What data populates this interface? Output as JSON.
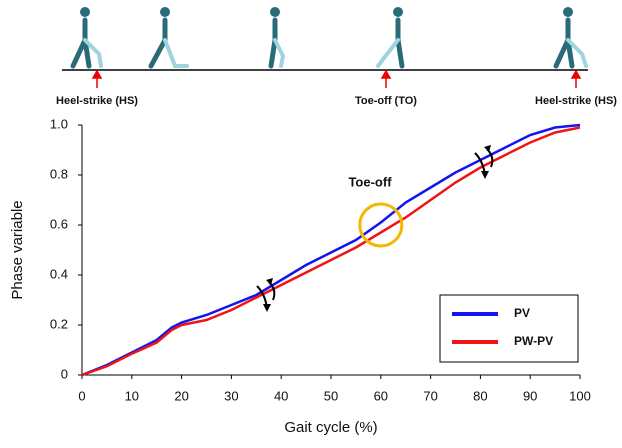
{
  "chart_data": {
    "type": "line",
    "x_label": "Gait cycle (%)",
    "y_label": "Phase variable",
    "annotation": "Toe-off",
    "gait_events": [
      "Heel-strike (HS)",
      "Toe-off (TO)",
      "Heel-strike (HS)"
    ],
    "x": [
      0,
      5,
      10,
      15,
      18,
      20,
      25,
      30,
      35,
      40,
      45,
      50,
      55,
      60,
      65,
      70,
      75,
      80,
      85,
      90,
      95,
      100
    ],
    "series": [
      {
        "name": "PV",
        "color": "#1414f0",
        "values": [
          0,
          0.04,
          0.09,
          0.14,
          0.19,
          0.21,
          0.24,
          0.28,
          0.32,
          0.38,
          0.44,
          0.49,
          0.54,
          0.61,
          0.69,
          0.75,
          0.81,
          0.86,
          0.91,
          0.96,
          0.99,
          1.0
        ]
      },
      {
        "name": "PW-PV",
        "color": "#f01414",
        "values": [
          0,
          0.035,
          0.085,
          0.13,
          0.18,
          0.2,
          0.22,
          0.26,
          0.31,
          0.36,
          0.41,
          0.46,
          0.51,
          0.57,
          0.63,
          0.7,
          0.77,
          0.83,
          0.88,
          0.93,
          0.97,
          0.99
        ]
      }
    ],
    "xlim": [
      0,
      100
    ],
    "xticks": [
      0,
      10,
      20,
      30,
      40,
      50,
      60,
      70,
      80,
      90,
      100
    ],
    "ylim": [
      0,
      1
    ],
    "yticks": [
      0,
      0.2,
      0.4,
      0.6,
      0.8,
      {
        "value": 1,
        "label": "1.0"
      }
    ],
    "legend": "lower right",
    "grid": false
  }
}
